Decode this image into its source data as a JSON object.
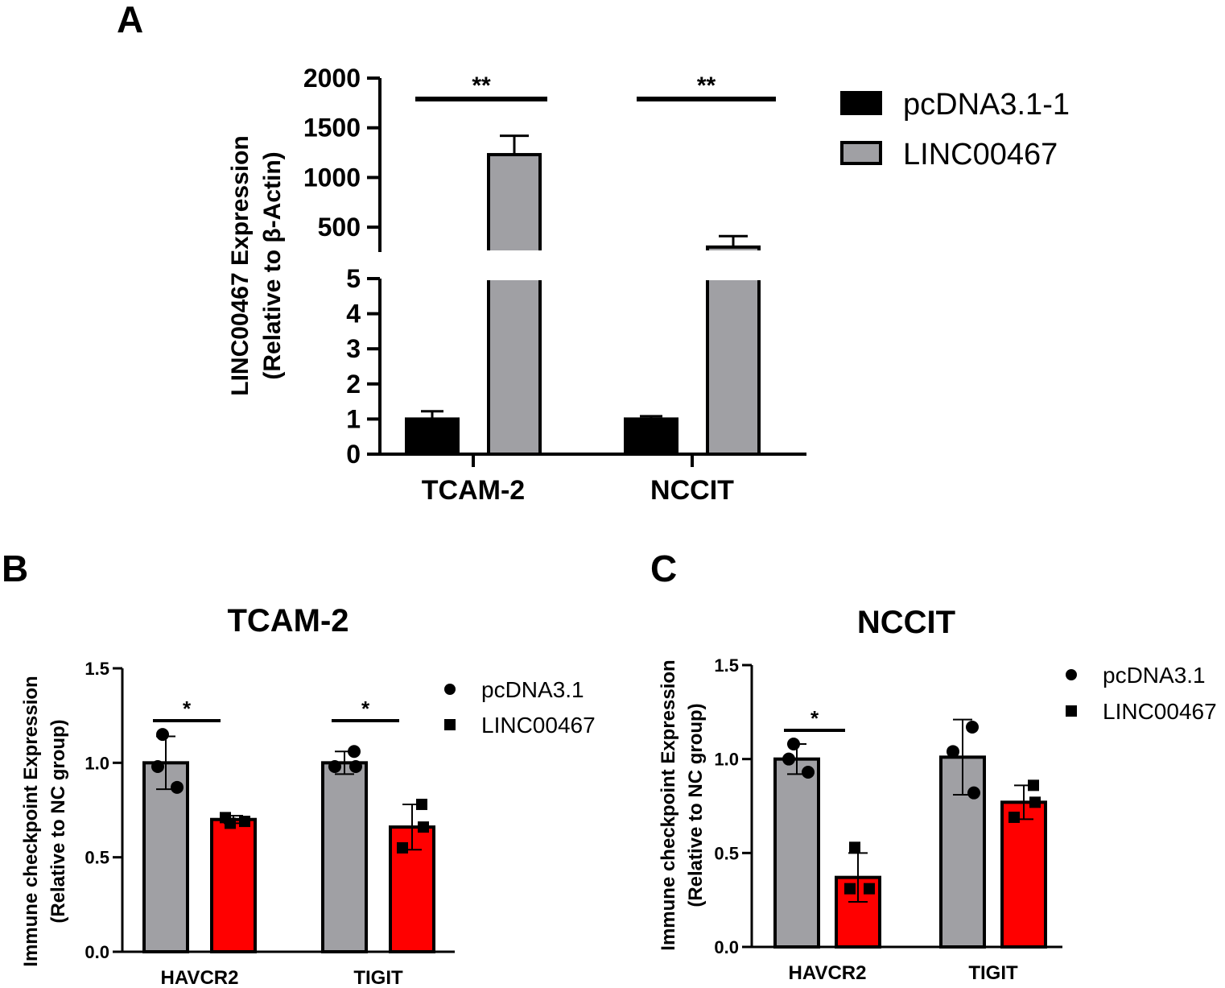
{
  "panels": {
    "a": {
      "letter": "A"
    },
    "b": {
      "letter": "B"
    },
    "c": {
      "letter": "C"
    }
  },
  "colors": {
    "black": "#000000",
    "gray": "#a0a0a4",
    "red": "#ff0000",
    "white": "#ffffff"
  },
  "chart_data": [
    {
      "id": "panel-a",
      "type": "bar",
      "title": "",
      "ylabel_line1": "LINC00467 Expression",
      "ylabel_line2": "(Relative to β-Actin)",
      "xlabel": "",
      "axis_break": true,
      "ylim_lower": [
        0,
        5
      ],
      "ylim_upper": [
        250,
        2000
      ],
      "yticks_lower": [
        "0",
        "1",
        "2",
        "3",
        "4",
        "5"
      ],
      "yticks_upper": [
        "500",
        "1000",
        "1500",
        "2000"
      ],
      "categories": [
        "TCAM-2",
        "NCCIT"
      ],
      "legend_position": "right",
      "series": [
        {
          "name": "pcDNA3.1-1",
          "color": "#000000",
          "values": [
            1.0,
            1.0
          ],
          "errors": [
            0.22,
            0.08
          ]
        },
        {
          "name": "LINC00467",
          "color": "#a0a0a4",
          "values": [
            1230,
            300
          ],
          "errors": [
            190,
            110
          ]
        }
      ],
      "significance": [
        {
          "category": "TCAM-2",
          "label": "**"
        },
        {
          "category": "NCCIT",
          "label": "**"
        }
      ]
    },
    {
      "id": "panel-b",
      "type": "bar",
      "title": "TCAM-2",
      "ylabel_line1": "Immune checkpoint Expression",
      "ylabel_line2": "(Relative to NC group)",
      "xlabel": "",
      "ylim": [
        0,
        1.5
      ],
      "yticks": [
        "0.0",
        "0.5",
        "1.0",
        "1.5"
      ],
      "categories": [
        "HAVCR2",
        "TIGIT"
      ],
      "legend_position": "right",
      "series": [
        {
          "name": "pcDNA3.1",
          "color": "#a0a0a4",
          "marker": "circle",
          "values": [
            1.0,
            1.0
          ],
          "errors": [
            0.14,
            0.06
          ],
          "points": [
            [
              1.15,
              0.98,
              0.87
            ],
            [
              1.06,
              0.98,
              0.98
            ]
          ]
        },
        {
          "name": "LINC00467",
          "color": "#ff0000",
          "marker": "square",
          "values": [
            0.7,
            0.66
          ],
          "errors": [
            0.02,
            0.12
          ],
          "points": [
            [
              0.68,
              0.71,
              0.69
            ],
            [
              0.78,
              0.66,
              0.55
            ]
          ]
        }
      ],
      "significance": [
        {
          "category": "HAVCR2",
          "label": "*"
        },
        {
          "category": "TIGIT",
          "label": "*"
        }
      ]
    },
    {
      "id": "panel-c",
      "type": "bar",
      "title": "NCCIT",
      "ylabel_line1": "Immune checkpoint Expression",
      "ylabel_line2": "(Relative to NC group)",
      "xlabel": "",
      "ylim": [
        0,
        1.5
      ],
      "yticks": [
        "0.0",
        "0.5",
        "1.0",
        "1.5"
      ],
      "categories": [
        "HAVCR2",
        "TIGIT"
      ],
      "legend_position": "right",
      "series": [
        {
          "name": "pcDNA3.1",
          "color": "#a0a0a4",
          "marker": "circle",
          "values": [
            1.0,
            1.01
          ],
          "errors": [
            0.08,
            0.2
          ],
          "points": [
            [
              1.08,
              1.0,
              0.93
            ],
            [
              1.17,
              0.82,
              1.04
            ]
          ]
        },
        {
          "name": "LINC00467",
          "color": "#ff0000",
          "marker": "square",
          "values": [
            0.37,
            0.77
          ],
          "errors": [
            0.13,
            0.09
          ],
          "points": [
            [
              0.53,
              0.31,
              0.31
            ],
            [
              0.86,
              0.77,
              0.69
            ]
          ]
        }
      ],
      "significance": [
        {
          "category": "HAVCR2",
          "label": "*"
        }
      ]
    }
  ]
}
